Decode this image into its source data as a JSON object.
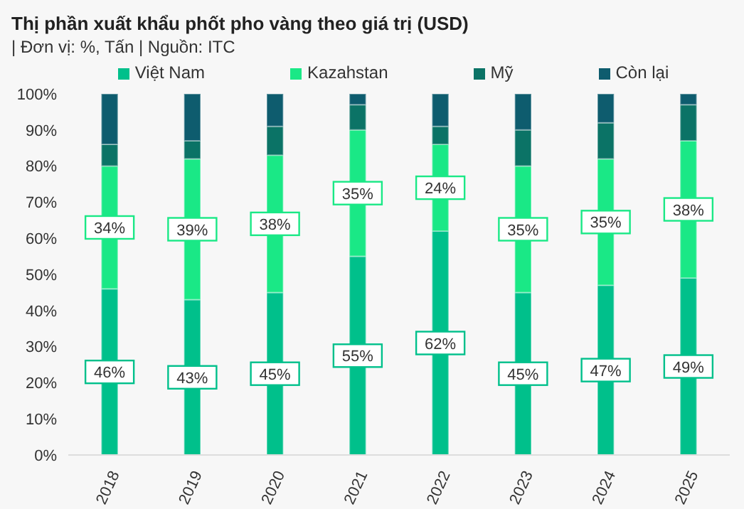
{
  "chart_data": {
    "type": "bar",
    "title": "Thị phần xuất khẩu phốt pho vàng theo giá trị (USD)",
    "subtitle": "| Đơn vị: %, Tấn | Nguồn: ITC",
    "categories": [
      "2018",
      "2019",
      "2020",
      "2021",
      "2022",
      "2023",
      "2024",
      "2025"
    ],
    "stacked": true,
    "legend": "top",
    "grid": false,
    "ylim": [
      0,
      100
    ],
    "yticks": [
      {
        "value": 0,
        "label": "0%"
      },
      {
        "value": 10,
        "label": "10%"
      },
      {
        "value": 20,
        "label": "20%"
      },
      {
        "value": 30,
        "label": "30%"
      },
      {
        "value": 40,
        "label": "40%"
      },
      {
        "value": 50,
        "label": "50%"
      },
      {
        "value": 60,
        "label": "60%"
      },
      {
        "value": 70,
        "label": "70%"
      },
      {
        "value": 80,
        "label": "80%"
      },
      {
        "value": 90,
        "label": "90%"
      },
      {
        "value": 100,
        "label": "100%"
      }
    ],
    "series": [
      {
        "name": "Việt Nam",
        "color": "#00c08b",
        "values": [
          46,
          43,
          45,
          55,
          62,
          45,
          47,
          49
        ],
        "value_labels": [
          "46%",
          "43%",
          "45%",
          "55%",
          "62%",
          "45%",
          "47%",
          "49%"
        ]
      },
      {
        "name": "Kazahstan",
        "color": "#1ae886",
        "values": [
          34,
          39,
          38,
          35,
          24,
          35,
          35,
          38
        ],
        "value_labels": [
          "34%",
          "39%",
          "38%",
          "35%",
          "24%",
          "35%",
          "35%",
          "38%"
        ]
      },
      {
        "name": "Mỹ",
        "color": "#0b7366",
        "values": [
          6,
          5,
          8,
          7,
          5,
          10,
          10,
          10
        ]
      },
      {
        "name": "Còn lại",
        "color": "#0e5c6e",
        "values": [
          14,
          13,
          9,
          3,
          9,
          10,
          8,
          3
        ]
      }
    ]
  }
}
